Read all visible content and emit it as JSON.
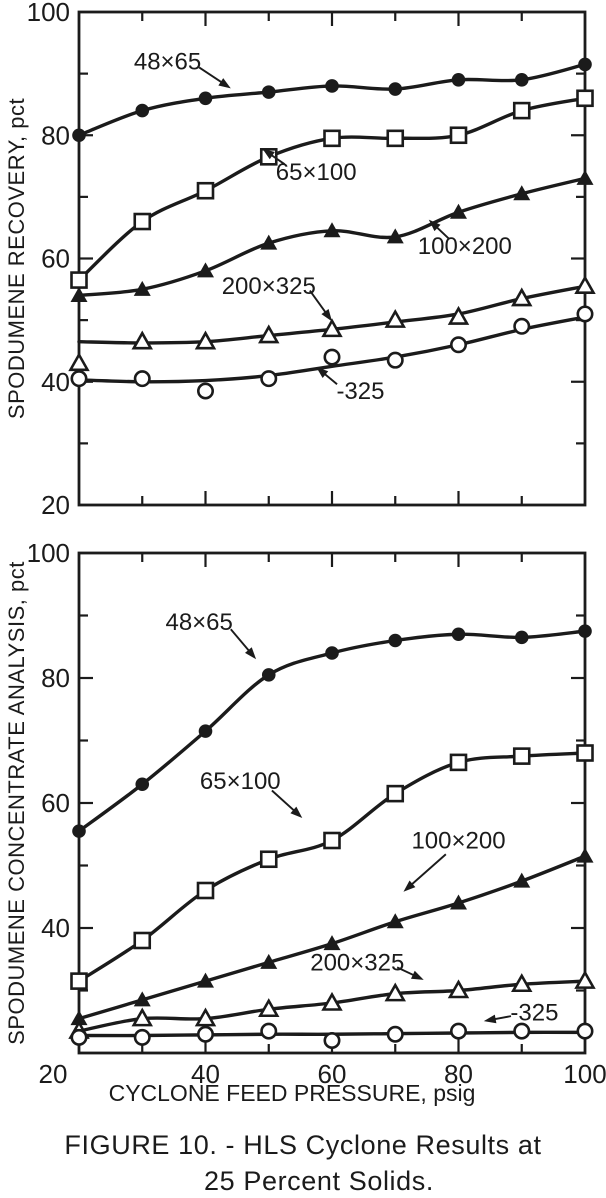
{
  "page": {
    "ink": "#1b1b1b",
    "paper": "#ffffff"
  },
  "caption": {
    "line1": "FIGURE 10. - HLS Cyclone Results at",
    "line2": "25 Percent Solids."
  },
  "chart_data": [
    {
      "id": "recovery",
      "type": "line",
      "title": "",
      "xlabel": "",
      "ylabel": "SPODUMENE RECOVERY, pct",
      "xlim": [
        20,
        100
      ],
      "ylim": [
        20,
        100
      ],
      "x": [
        20,
        30,
        40,
        50,
        60,
        70,
        80,
        90,
        100
      ],
      "x_tick_labels": [],
      "y_tick_labels": [
        100,
        80,
        60,
        40,
        20
      ],
      "minor_tick_step": 10,
      "grid": false,
      "legend": "inline-annotations",
      "series": [
        {
          "name": "48×65",
          "marker": "filled-circle",
          "values": [
            80,
            84,
            86,
            87,
            88,
            87.5,
            89,
            89,
            91.5
          ],
          "label": {
            "x": 34,
            "y": 92
          },
          "arrow": {
            "x1": 39,
            "y1": 91,
            "x2": 44,
            "y2": 87.6
          }
        },
        {
          "name": "65×100",
          "marker": "open-square",
          "values": [
            56.5,
            66,
            71,
            76.5,
            79.5,
            79.5,
            80,
            84,
            86
          ],
          "label": {
            "x": 57.5,
            "y": 74
          },
          "arrow": {
            "x1": 52.5,
            "y1": 75.3,
            "x2": 49,
            "y2": 77.8
          }
        },
        {
          "name": "100×200",
          "marker": "filled-triangle",
          "values": [
            54,
            55,
            58,
            62.5,
            64.5,
            63.5,
            67.5,
            70.5,
            73
          ],
          "label": {
            "x": 81,
            "y": 62
          },
          "arrow": {
            "x1": 78.5,
            "y1": 63.2,
            "x2": 75.3,
            "y2": 66.3
          }
        },
        {
          "name": "200×325",
          "marker": "open-triangle",
          "values": [
            43,
            46.5,
            46.5,
            47.5,
            48.5,
            50,
            50.5,
            53.5,
            55.5
          ],
          "curve_values": [
            46.5,
            46.3,
            46.5,
            47.5,
            48.5,
            49.7,
            51,
            53.5,
            55.5
          ],
          "label": {
            "x": 50,
            "y": 55.5
          },
          "arrow": {
            "x1": 56.5,
            "y1": 54.8,
            "x2": 60,
            "y2": 49.8
          }
        },
        {
          "name": "-325",
          "marker": "open-circle",
          "values": [
            40.5,
            40.5,
            38.5,
            40.5,
            44,
            43.5,
            46,
            49,
            51
          ],
          "curve_values": [
            40.3,
            40,
            40.2,
            41,
            42.5,
            44,
            46,
            48.5,
            50.5
          ],
          "label": {
            "x": 64.5,
            "y": 38.5
          },
          "arrow": {
            "x1": 60.8,
            "y1": 39.6,
            "x2": 57.5,
            "y2": 42.4
          }
        }
      ]
    },
    {
      "id": "analysis",
      "type": "line",
      "title": "",
      "xlabel": "CYCLONE FEED PRESSURE, psig",
      "ylabel": "SPODUMENE CONCENTRATE ANALYSIS, pct",
      "xlim": [
        20,
        100
      ],
      "ylim": [
        20,
        100
      ],
      "x": [
        20,
        30,
        40,
        50,
        60,
        70,
        80,
        90,
        100
      ],
      "x_tick_labels": [
        20,
        40,
        60,
        80,
        100
      ],
      "y_tick_labels": [
        100,
        80,
        60,
        40
      ],
      "minor_tick_step": 10,
      "grid": false,
      "legend": "inline-annotations",
      "series": [
        {
          "name": "48×65",
          "marker": "filled-circle",
          "values": [
            55.5,
            63,
            71.5,
            80.5,
            84,
            86,
            87,
            86.5,
            87.5
          ],
          "label": {
            "x": 39,
            "y": 89
          },
          "arrow": {
            "x1": 44,
            "y1": 87.8,
            "x2": 48,
            "y2": 83
          }
        },
        {
          "name": "65×100",
          "marker": "open-square",
          "values": [
            31.5,
            38,
            46,
            51,
            54,
            61.5,
            66.5,
            67.5,
            68
          ],
          "label": {
            "x": 45.5,
            "y": 63.5
          },
          "arrow": {
            "x1": 50.5,
            "y1": 62,
            "x2": 55.3,
            "y2": 57.6
          }
        },
        {
          "name": "100×200",
          "marker": "filled-triangle",
          "values": [
            25.5,
            28.5,
            31.5,
            34.5,
            37.5,
            41,
            44,
            47.5,
            51.5
          ],
          "label": {
            "x": 80,
            "y": 54
          },
          "arrow": {
            "x1": 78,
            "y1": 51.8,
            "x2": 71.3,
            "y2": 45.8
          }
        },
        {
          "name": "200×325",
          "marker": "open-triangle",
          "values": [
            23.5,
            25.5,
            25.5,
            27,
            28,
            29.5,
            30,
            31,
            31.5
          ],
          "label": {
            "x": 64,
            "y": 34.5
          },
          "arrow": {
            "x1": 70.3,
            "y1": 33.7,
            "x2": 74.5,
            "y2": 31.7
          }
        },
        {
          "name": "-325",
          "marker": "open-circle",
          "values": [
            22.5,
            22.5,
            23,
            23.5,
            22,
            23,
            23.5,
            23.5,
            23.5
          ],
          "curve_values": [
            22.8,
            22.8,
            22.9,
            23,
            23,
            23.1,
            23.2,
            23.3,
            23.3
          ],
          "label": {
            "x": 92,
            "y": 26.5
          },
          "arrow": {
            "x1": 88.3,
            "y1": 25.9,
            "x2": 84,
            "y2": 25.1
          }
        }
      ]
    }
  ]
}
